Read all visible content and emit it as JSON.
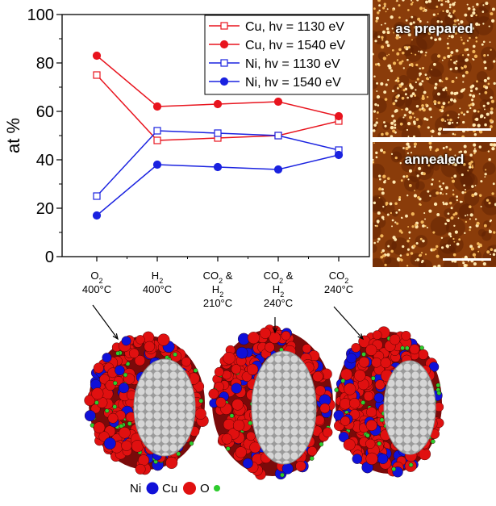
{
  "chart_data": {
    "type": "line",
    "ylabel": "at %",
    "ylim": [
      0,
      100
    ],
    "yticks": [
      0,
      20,
      40,
      60,
      80,
      100
    ],
    "categories": [
      [
        "O2",
        "400°C"
      ],
      [
        "H2",
        "400°C"
      ],
      [
        "CO2 &",
        "H2",
        "210°C"
      ],
      [
        "CO2 &",
        "H2",
        "240°C"
      ],
      [
        "CO2",
        "240°C"
      ]
    ],
    "series": [
      {
        "name": "Cu, hv = 1130 eV",
        "color": "#e8141e",
        "marker": "square-open",
        "values": [
          75,
          48,
          49,
          50,
          56
        ]
      },
      {
        "name": "Cu, hv = 1540 eV",
        "color": "#e8141e",
        "marker": "circle-filled",
        "values": [
          83,
          62,
          63,
          64,
          58
        ]
      },
      {
        "name": "Ni, hv = 1130 eV",
        "color": "#1a22e0",
        "marker": "square-open",
        "values": [
          25,
          52,
          51,
          50,
          44
        ]
      },
      {
        "name": "Ni, hv = 1540 eV",
        "color": "#1a22e0",
        "marker": "circle-filled",
        "values": [
          17,
          38,
          37,
          36,
          42
        ]
      }
    ],
    "legend_position": "top-right"
  },
  "afm_images": {
    "top_label": "as prepared",
    "bottom_label": "annealed"
  },
  "structure_legend": {
    "ni_label": "Ni",
    "cu_label": "Cu",
    "o_label": "O",
    "ni_color": "#1010d8",
    "cu_color": "#e01010",
    "o_color": "#2ecc2e",
    "core_color": "#bdbdbd"
  }
}
